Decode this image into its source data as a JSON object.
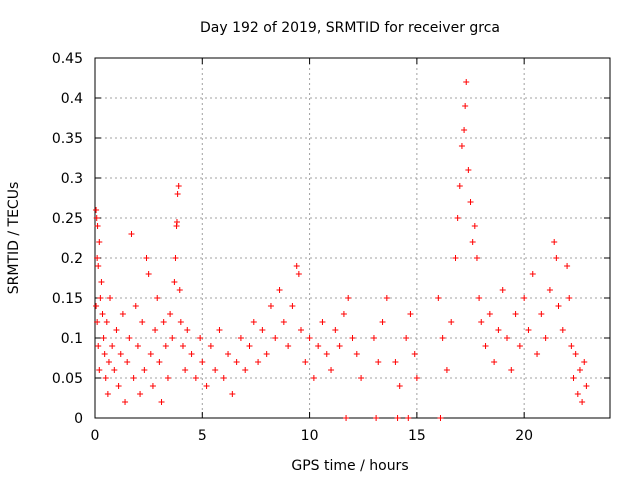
{
  "chart_data": {
    "type": "scatter",
    "title": "Day 192 of 2019, SRMTID for receiver grca",
    "xlabel": "GPS time / hours",
    "ylabel": "SRMTID / TECUs",
    "xlim": [
      0,
      24
    ],
    "ylim": [
      0,
      0.45
    ],
    "x_ticks": [
      0,
      5,
      10,
      15,
      20
    ],
    "x_tick_labels": [
      "0",
      "5",
      "10",
      "15",
      "20"
    ],
    "y_ticks": [
      0,
      0.05,
      0.1,
      0.15,
      0.2,
      0.25,
      0.3,
      0.35,
      0.4,
      0.45
    ],
    "y_tick_labels": [
      "0",
      "0.05",
      "0.1",
      "0.15",
      "0.2",
      "0.25",
      "0.3",
      "0.35",
      "0.4",
      "0.45"
    ],
    "grid": true,
    "marker": "plus",
    "marker_color": "#ff0000",
    "series": [
      {
        "points": [
          [
            0.05,
            0.26
          ],
          [
            0.08,
            0.25
          ],
          [
            0.12,
            0.24
          ],
          [
            0.1,
            0.2
          ],
          [
            0.15,
            0.19
          ],
          [
            0.2,
            0.22
          ],
          [
            0.05,
            0.14
          ],
          [
            0.1,
            0.12
          ],
          [
            0.15,
            0.09
          ],
          [
            0.2,
            0.06
          ],
          [
            0.3,
            0.17
          ],
          [
            0.25,
            0.15
          ],
          [
            0.35,
            0.13
          ],
          [
            0.4,
            0.1
          ],
          [
            0.45,
            0.08
          ],
          [
            0.5,
            0.05
          ],
          [
            0.55,
            0.12
          ],
          [
            0.6,
            0.03
          ],
          [
            0.65,
            0.07
          ],
          [
            0.7,
            0.15
          ],
          [
            0.8,
            0.09
          ],
          [
            0.9,
            0.06
          ],
          [
            1.0,
            0.11
          ],
          [
            1.1,
            0.04
          ],
          [
            1.2,
            0.08
          ],
          [
            1.3,
            0.13
          ],
          [
            1.4,
            0.02
          ],
          [
            1.5,
            0.07
          ],
          [
            1.6,
            0.1
          ],
          [
            1.7,
            0.23
          ],
          [
            1.8,
            0.05
          ],
          [
            1.9,
            0.14
          ],
          [
            2.0,
            0.09
          ],
          [
            2.1,
            0.03
          ],
          [
            2.2,
            0.12
          ],
          [
            2.3,
            0.06
          ],
          [
            2.4,
            0.2
          ],
          [
            2.5,
            0.18
          ],
          [
            2.6,
            0.08
          ],
          [
            2.7,
            0.04
          ],
          [
            2.8,
            0.11
          ],
          [
            2.9,
            0.15
          ],
          [
            3.0,
            0.07
          ],
          [
            3.1,
            0.02
          ],
          [
            3.2,
            0.12
          ],
          [
            3.3,
            0.09
          ],
          [
            3.4,
            0.05
          ],
          [
            3.5,
            0.13
          ],
          [
            3.6,
            0.1
          ],
          [
            3.7,
            0.17
          ],
          [
            3.75,
            0.2
          ],
          [
            3.8,
            0.24
          ],
          [
            3.85,
            0.28
          ],
          [
            3.9,
            0.29
          ],
          [
            3.82,
            0.245
          ],
          [
            3.95,
            0.16
          ],
          [
            4.0,
            0.12
          ],
          [
            4.1,
            0.09
          ],
          [
            4.2,
            0.06
          ],
          [
            4.3,
            0.11
          ],
          [
            4.5,
            0.08
          ],
          [
            4.7,
            0.05
          ],
          [
            4.9,
            0.1
          ],
          [
            5.0,
            0.07
          ],
          [
            5.2,
            0.04
          ],
          [
            5.4,
            0.09
          ],
          [
            5.6,
            0.06
          ],
          [
            5.8,
            0.11
          ],
          [
            6.0,
            0.05
          ],
          [
            6.2,
            0.08
          ],
          [
            6.4,
            0.03
          ],
          [
            6.6,
            0.07
          ],
          [
            6.8,
            0.1
          ],
          [
            7.0,
            0.06
          ],
          [
            7.2,
            0.09
          ],
          [
            7.4,
            0.12
          ],
          [
            7.6,
            0.07
          ],
          [
            7.8,
            0.11
          ],
          [
            8.0,
            0.08
          ],
          [
            8.2,
            0.14
          ],
          [
            8.4,
            0.1
          ],
          [
            8.6,
            0.16
          ],
          [
            8.8,
            0.12
          ],
          [
            9.0,
            0.09
          ],
          [
            9.2,
            0.14
          ],
          [
            9.4,
            0.19
          ],
          [
            9.5,
            0.18
          ],
          [
            9.6,
            0.11
          ],
          [
            9.8,
            0.07
          ],
          [
            10.0,
            0.1
          ],
          [
            10.2,
            0.05
          ],
          [
            10.4,
            0.09
          ],
          [
            10.6,
            0.12
          ],
          [
            10.8,
            0.08
          ],
          [
            11.0,
            0.06
          ],
          [
            11.2,
            0.11
          ],
          [
            11.4,
            0.09
          ],
          [
            11.6,
            0.13
          ],
          [
            11.8,
            0.15
          ],
          [
            12.0,
            0.1
          ],
          [
            12.2,
            0.08
          ],
          [
            12.4,
            0.05
          ],
          [
            13.0,
            0.1
          ],
          [
            13.2,
            0.07
          ],
          [
            13.4,
            0.12
          ],
          [
            13.6,
            0.15
          ],
          [
            14.0,
            0.07
          ],
          [
            14.2,
            0.04
          ],
          [
            14.5,
            0.1
          ],
          [
            14.7,
            0.13
          ],
          [
            14.9,
            0.08
          ],
          [
            15.0,
            0.05
          ],
          [
            16.0,
            0.15
          ],
          [
            16.2,
            0.1
          ],
          [
            16.4,
            0.06
          ],
          [
            16.6,
            0.12
          ],
          [
            16.8,
            0.2
          ],
          [
            16.9,
            0.25
          ],
          [
            17.0,
            0.29
          ],
          [
            17.1,
            0.34
          ],
          [
            17.2,
            0.36
          ],
          [
            17.3,
            0.42
          ],
          [
            17.25,
            0.39
          ],
          [
            17.4,
            0.31
          ],
          [
            17.5,
            0.27
          ],
          [
            17.6,
            0.22
          ],
          [
            17.7,
            0.24
          ],
          [
            17.8,
            0.2
          ],
          [
            17.9,
            0.15
          ],
          [
            18.0,
            0.12
          ],
          [
            18.2,
            0.09
          ],
          [
            18.4,
            0.13
          ],
          [
            18.6,
            0.07
          ],
          [
            18.8,
            0.11
          ],
          [
            19.0,
            0.16
          ],
          [
            19.2,
            0.1
          ],
          [
            19.4,
            0.06
          ],
          [
            19.6,
            0.13
          ],
          [
            19.8,
            0.09
          ],
          [
            20.0,
            0.15
          ],
          [
            20.2,
            0.11
          ],
          [
            20.4,
            0.18
          ],
          [
            20.6,
            0.08
          ],
          [
            20.8,
            0.13
          ],
          [
            21.0,
            0.1
          ],
          [
            21.2,
            0.16
          ],
          [
            21.4,
            0.22
          ],
          [
            21.5,
            0.2
          ],
          [
            21.6,
            0.14
          ],
          [
            21.8,
            0.11
          ],
          [
            22.0,
            0.19
          ],
          [
            22.1,
            0.15
          ],
          [
            22.2,
            0.09
          ],
          [
            22.3,
            0.05
          ],
          [
            22.4,
            0.08
          ],
          [
            22.5,
            0.03
          ],
          [
            22.6,
            0.06
          ],
          [
            22.7,
            0.02
          ],
          [
            22.8,
            0.07
          ],
          [
            22.9,
            0.04
          ],
          [
            11.7,
            0.0
          ],
          [
            13.1,
            0.0
          ],
          [
            14.1,
            0.0
          ],
          [
            14.6,
            0.0
          ],
          [
            16.1,
            0.0
          ]
        ]
      }
    ]
  }
}
